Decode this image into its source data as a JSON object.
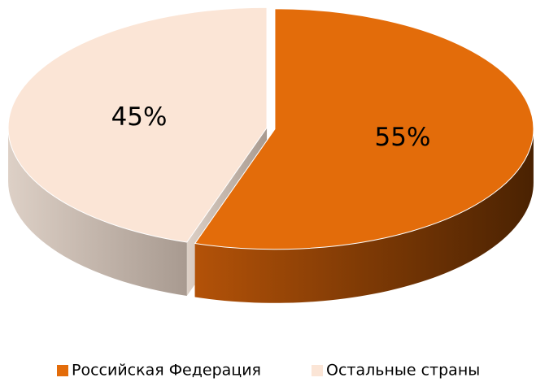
{
  "chart_data": {
    "type": "pie",
    "categories": [
      "Российская Федерация",
      "Остальные страны"
    ],
    "values": [
      55,
      45
    ],
    "value_labels": [
      "55%",
      "45%"
    ],
    "colors": [
      "#E36C0A",
      "#FBE5D6"
    ],
    "legend": "bottom"
  }
}
